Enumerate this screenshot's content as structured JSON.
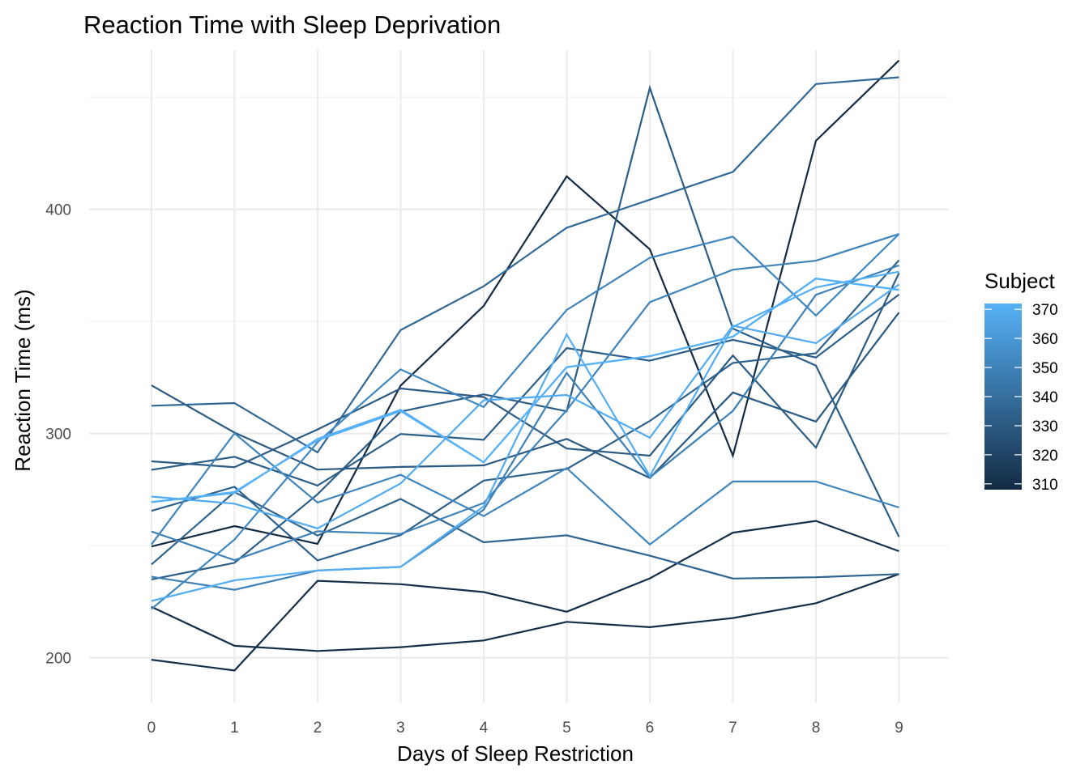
{
  "chart_data": {
    "type": "line",
    "title": "Reaction Time with Sleep Deprivation",
    "xlabel": "Days of Sleep Restriction",
    "ylabel": "Reaction Time (ms)",
    "x_ticks": [
      0,
      1,
      2,
      3,
      4,
      5,
      6,
      7,
      8,
      9
    ],
    "y_ticks": [
      200,
      300,
      400
    ],
    "xlim": [
      -0.75,
      9.6
    ],
    "ylim": [
      180,
      471
    ],
    "grid": true,
    "legend": {
      "title": "Subject",
      "placement": "right",
      "ticks": [
        310,
        320,
        330,
        340,
        350,
        360,
        370
      ],
      "range": [
        308,
        372
      ],
      "color_low": "#132B43",
      "color_high": "#56B1F7"
    },
    "series": [
      {
        "subject": 308,
        "values": [
          249.6,
          258.7,
          250.8,
          321.4,
          356.9,
          414.7,
          382.2,
          290.1,
          430.6,
          466.4
        ]
      },
      {
        "subject": 309,
        "values": [
          222.7,
          205.3,
          203.0,
          204.7,
          207.7,
          216.0,
          213.6,
          217.7,
          224.3,
          237.3
        ]
      },
      {
        "subject": 310,
        "values": [
          199.1,
          194.3,
          234.3,
          232.8,
          229.3,
          220.5,
          235.4,
          255.8,
          261.0,
          247.5
        ]
      },
      {
        "subject": 330,
        "values": [
          321.5,
          300.4,
          283.9,
          285.1,
          285.8,
          297.6,
          280.2,
          318.3,
          305.3,
          354.0
        ]
      },
      {
        "subject": 331,
        "values": [
          287.6,
          285.0,
          301.8,
          320.1,
          316.3,
          293.3,
          290.1,
          334.8,
          293.7,
          371.6
        ]
      },
      {
        "subject": 332,
        "values": [
          234.9,
          242.3,
          272.9,
          309.8,
          317.5,
          309.9,
          454.2,
          346.8,
          330.3,
          253.9
        ]
      },
      {
        "subject": 333,
        "values": [
          283.8,
          289.6,
          276.8,
          299.8,
          297.2,
          338.1,
          332.5,
          341.8,
          333.9,
          362.0
        ]
      },
      {
        "subject": 334,
        "values": [
          265.5,
          276.2,
          243.4,
          254.7,
          279.0,
          284.2,
          305.6,
          331.5,
          335.8,
          377.3
        ]
      },
      {
        "subject": 335,
        "values": [
          241.6,
          273.9,
          254.5,
          270.8,
          251.5,
          254.6,
          245.5,
          235.3,
          235.9,
          237.3
        ]
      },
      {
        "subject": 337,
        "values": [
          312.4,
          313.6,
          291.6,
          346.1,
          365.7,
          391.8,
          404.3,
          416.7,
          455.9,
          458.9
        ]
      },
      {
        "subject": 349,
        "values": [
          236.1,
          230.3,
          238.9,
          240.5,
          266.0,
          327.0,
          280.4,
          310.1,
          361.9,
          375.0
        ]
      },
      {
        "subject": 350,
        "values": [
          256.3,
          243.5,
          256.4,
          255.2,
          269.0,
          310.4,
          358.6,
          373.1,
          377.1,
          389.0
        ]
      },
      {
        "subject": 351,
        "values": [
          250.5,
          300.1,
          269.2,
          281.6,
          263.2,
          284.6,
          250.5,
          278.6,
          278.6,
          267.0
        ]
      },
      {
        "subject": 352,
        "values": [
          221.7,
          252.7,
          296.1,
          328.6,
          311.8,
          355.1,
          378.4,
          387.8,
          352.6,
          389.0
        ]
      },
      {
        "subject": 369,
        "values": [
          271.9,
          268.7,
          257.7,
          277.7,
          314.8,
          317.2,
          298.1,
          348.1,
          340.3,
          366.5
        ]
      },
      {
        "subject": 370,
        "values": [
          225.3,
          234.5,
          238.9,
          240.5,
          267.5,
          344.2,
          281.1,
          347.6,
          365.2,
          372.2
        ]
      },
      {
        "subject": 371,
        "values": [
          269.4,
          273.5,
          297.6,
          310.6,
          287.2,
          329.6,
          334.5,
          343.2,
          369.1,
          364.1
        ]
      },
      {
        "subject": 372,
        "values": [
          269.4,
          273.9,
          297.0,
          310.0,
          287.2,
          329.6,
          334.5,
          343.2,
          369.1,
          364.1
        ]
      }
    ]
  }
}
